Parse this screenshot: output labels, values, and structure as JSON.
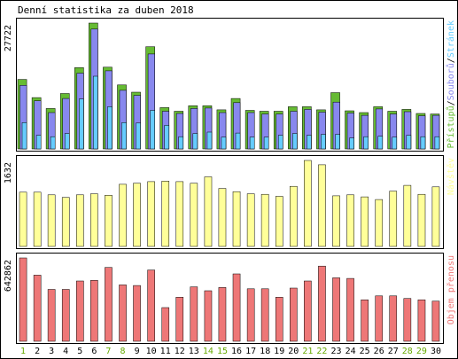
{
  "chart_data": {
    "type": "bar",
    "title": "Denní statistika za duben 2018",
    "categories": [
      "1",
      "2",
      "3",
      "4",
      "5",
      "6",
      "7",
      "8",
      "9",
      "10",
      "11",
      "12",
      "13",
      "14",
      "15",
      "16",
      "17",
      "18",
      "19",
      "20",
      "21",
      "22",
      "23",
      "24",
      "25",
      "26",
      "27",
      "28",
      "29",
      "30"
    ],
    "weekend_days": [
      "1",
      "7",
      "8",
      "14",
      "15",
      "21",
      "22",
      "28",
      "29"
    ],
    "colors": {
      "frame": "#000000",
      "background": "#ffffff",
      "grid": "#cccccc",
      "hits": "#66bb33",
      "files": "#8888ee",
      "pages": "#66ccff",
      "visits": "#ffff99",
      "kbytes": "#ee7777",
      "weekday_label": "#000000",
      "weekend_label": "#66aa00"
    },
    "panels": [
      {
        "id": "requests",
        "ymax_label": "27722",
        "ymax": 27722,
        "legend": [
          {
            "text": "Přístupů",
            "color": "#66bb33"
          },
          {
            "text": "/",
            "color": "#000000"
          },
          {
            "text": "Souborů",
            "color": "#8888ee"
          },
          {
            "text": "/",
            "color": "#000000"
          },
          {
            "text": "Stránek",
            "color": "#66ccff"
          }
        ],
        "series": [
          {
            "name": "Přístupů",
            "color": "#66bb33",
            "values": [
              15300,
              11300,
              8900,
              12200,
              17900,
              27722,
              18000,
              14100,
              12500,
              22500,
              9100,
              8300,
              9500,
              9500,
              8600,
              11100,
              8500,
              8300,
              8300,
              9300,
              9300,
              8600,
              12400,
              8400,
              8000,
              9300,
              8300,
              8700,
              7800,
              7700
            ]
          },
          {
            "name": "Souborů",
            "color": "#8888ee",
            "values": [
              14000,
              10600,
              8000,
              11100,
              16700,
              26400,
              17200,
              12900,
              11800,
              20900,
              8300,
              7800,
              8900,
              9000,
              8000,
              10200,
              8000,
              7700,
              7700,
              8300,
              8700,
              8100,
              10300,
              7900,
              7400,
              8800,
              7700,
              8200,
              7300,
              7400
            ]
          },
          {
            "name": "Stránek",
            "color": "#66ccff",
            "values": [
              5800,
              3000,
              2700,
              3400,
              11000,
              16000,
              9300,
              5800,
              5700,
              8500,
              5200,
              2700,
              3400,
              3700,
              2600,
              3500,
              2600,
              2600,
              3000,
              3400,
              3000,
              3200,
              3200,
              2400,
              2700,
              2800,
              2600,
              3000,
              2700,
              2700
            ]
          }
        ]
      },
      {
        "id": "visits",
        "ymax_label": "1632",
        "ymax": 1632,
        "legend": [
          {
            "text": "Návštěv",
            "color": "#ffff99"
          }
        ],
        "series": [
          {
            "name": "Návštěv",
            "color": "#ffff99",
            "values": [
              1030,
              1030,
              980,
              930,
              980,
              1000,
              970,
              1180,
              1200,
              1230,
              1240,
              1230,
              1200,
              1320,
              1100,
              1040,
              1000,
              990,
              950,
              1140,
              1632,
              1550,
              960,
              980,
              940,
              890,
              1050,
              1160,
              990,
              1130
            ]
          }
        ]
      },
      {
        "id": "traffic",
        "ymax_label": "642862",
        "ymax": 642862,
        "legend": [
          {
            "text": "Objem přenosu",
            "color": "#ee7777"
          }
        ],
        "series": [
          {
            "name": "Objem přenosu",
            "color": "#ee7777",
            "values": [
              642862,
              510000,
              400000,
              400000,
              465000,
              470000,
              570000,
              435000,
              430000,
              550000,
              260000,
              340000,
              420000,
              390000,
              415000,
              520000,
              405000,
              405000,
              340000,
              410000,
              465000,
              580000,
              490000,
              485000,
              320000,
              350000,
              350000,
              330000,
              320000,
              310000
            ]
          }
        ]
      }
    ]
  }
}
